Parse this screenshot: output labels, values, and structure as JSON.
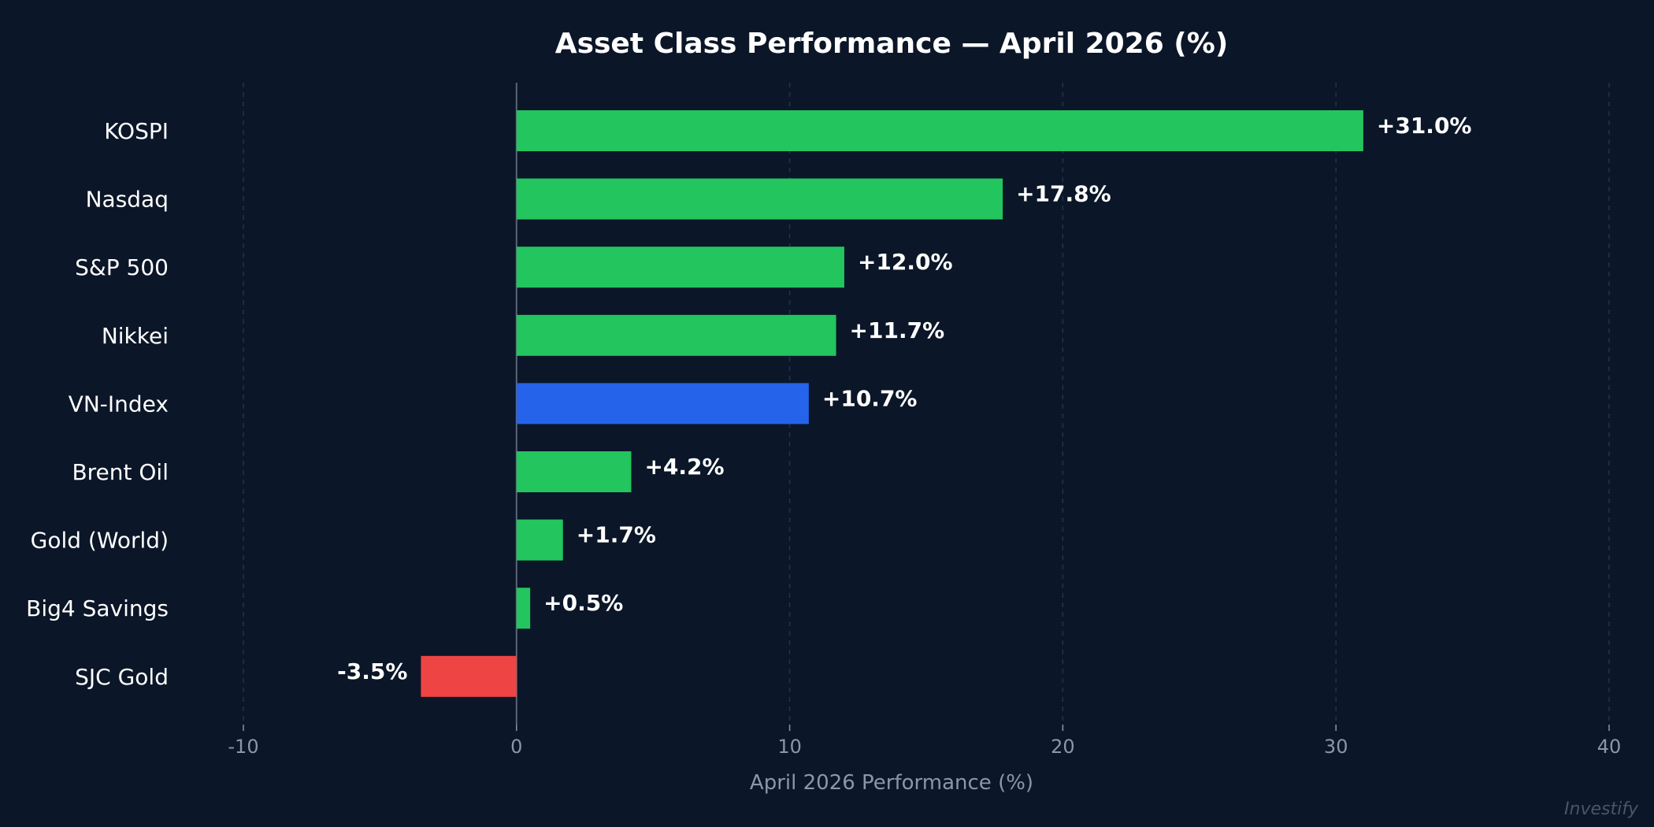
{
  "chart_data": {
    "type": "bar",
    "orientation": "horizontal",
    "title": "Asset Class Performance — April 2026 (%)",
    "xlabel": "April 2026 Performance (%)",
    "ylabel": "",
    "xlim": [
      -10,
      40
    ],
    "xticks": [
      -10,
      0,
      10,
      20,
      30,
      40
    ],
    "grid": "vertical dashed",
    "categories": [
      "KOSPI",
      "Nasdaq",
      "S&P 500",
      "Nikkei",
      "VN-Index",
      "Brent Oil",
      "Gold (World)",
      "Big4 Savings",
      "SJC Gold"
    ],
    "values": [
      31.0,
      17.8,
      12.0,
      11.7,
      10.7,
      4.2,
      1.7,
      0.5,
      -3.5
    ],
    "value_labels": [
      "+31.0%",
      "+17.8%",
      "+12.0%",
      "+11.7%",
      "+10.7%",
      "+4.2%",
      "+1.7%",
      "+0.5%",
      "-3.5%"
    ],
    "bar_colors": [
      "#22c55e",
      "#22c55e",
      "#22c55e",
      "#22c55e",
      "#2563eb",
      "#22c55e",
      "#22c55e",
      "#22c55e",
      "#ef4444"
    ]
  },
  "colors": {
    "background": "#0b1628",
    "positive": "#22c55e",
    "highlight": "#2563eb",
    "negative": "#ef4444",
    "grid": "#1e3350",
    "zero_line": "#5a6678"
  },
  "watermark": "Investify"
}
